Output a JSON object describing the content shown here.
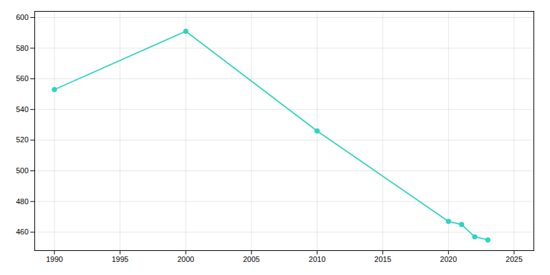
{
  "chart_data": {
    "type": "line",
    "x": [
      1990,
      2000,
      2010,
      2020,
      2021,
      2022,
      2023
    ],
    "values": [
      553,
      591,
      526,
      467,
      465,
      457,
      455
    ],
    "color": "#2DD4BF",
    "marker": "circle",
    "xlim": [
      1988.5,
      2026.5
    ],
    "ylim": [
      448,
      604
    ],
    "xticks": [
      1990,
      1995,
      2000,
      2005,
      2010,
      2015,
      2020,
      2025
    ],
    "yticks": [
      460,
      480,
      500,
      520,
      540,
      560,
      580,
      600
    ],
    "grid": true
  }
}
